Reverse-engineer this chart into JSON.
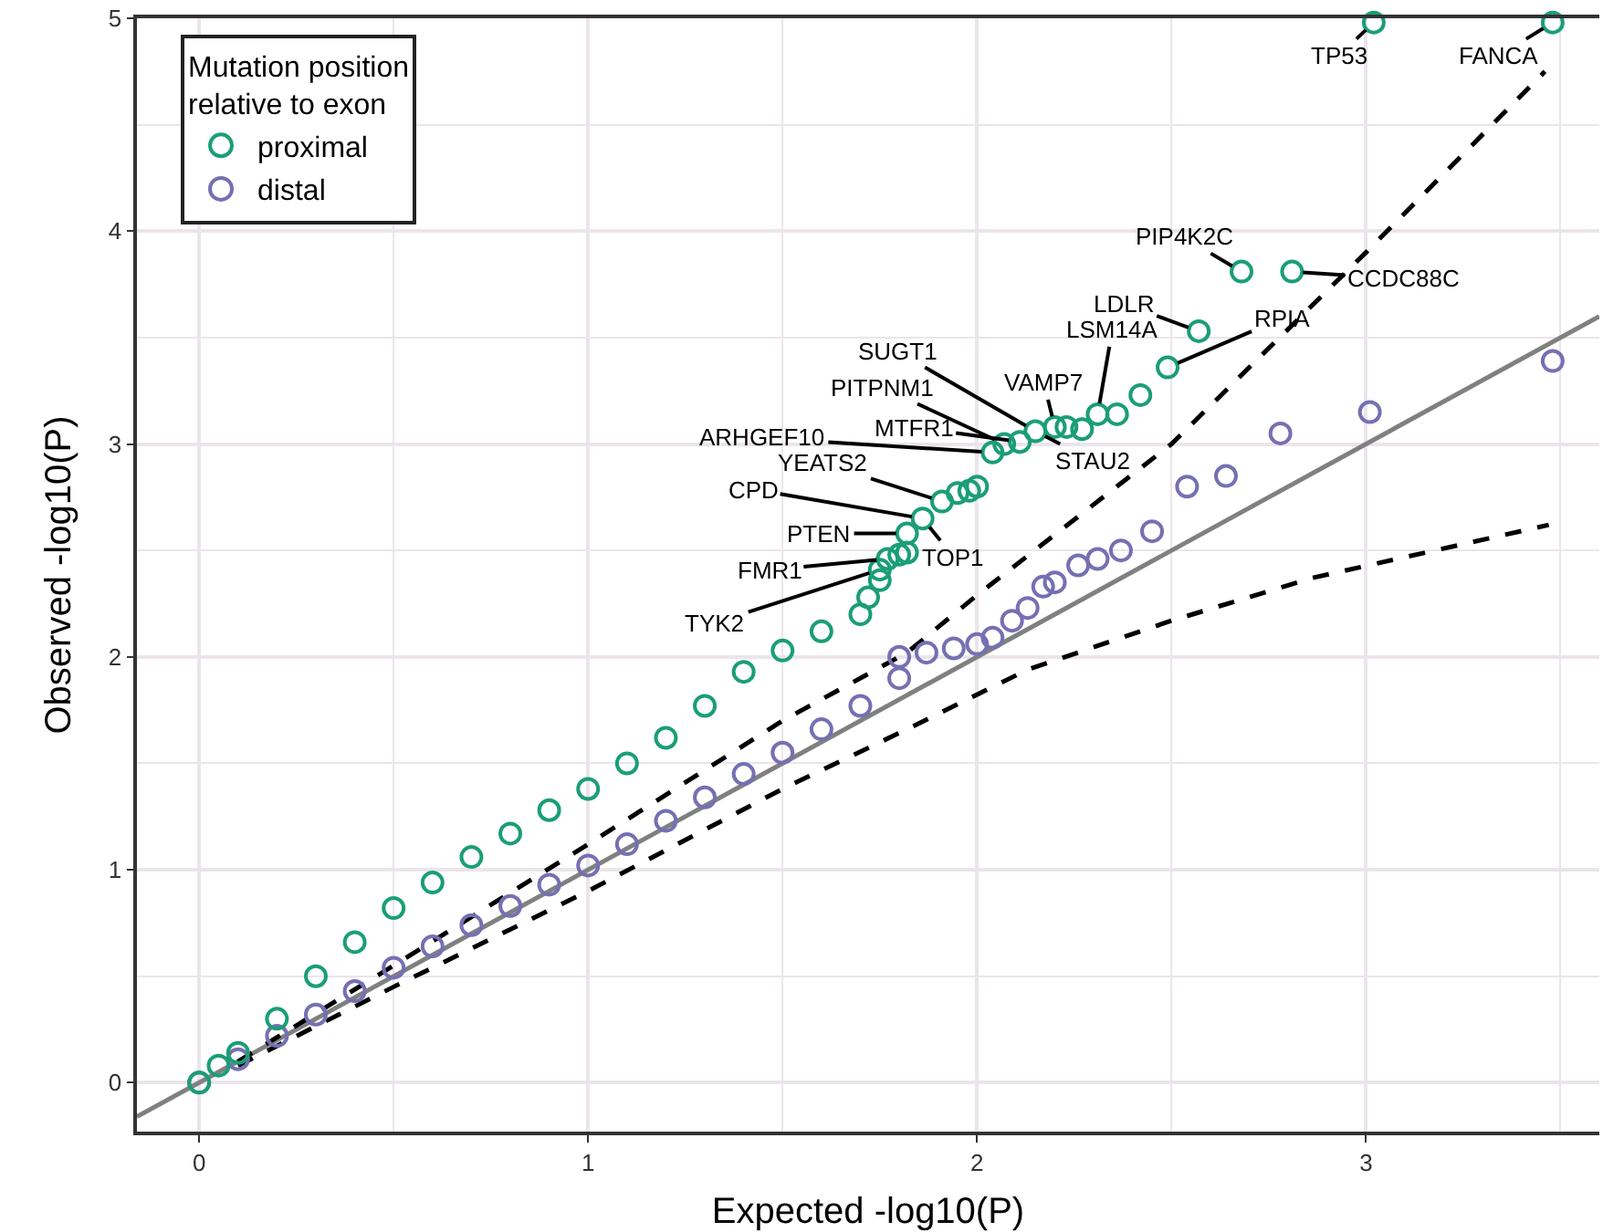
{
  "chart_data": {
    "type": "scatter",
    "xlabel": "Expected -log10(P)",
    "ylabel": "Observed -log10(P)",
    "legend_title": "Mutation position\nrelative to exon",
    "xlim": [
      -0.16,
      3.6
    ],
    "ylim": [
      -0.23,
      5.0
    ],
    "xticks": [
      0,
      1,
      2,
      3
    ],
    "yticks": [
      0,
      1,
      2,
      3,
      4,
      5
    ],
    "grid": true,
    "legend": "top left",
    "series": [
      {
        "type": "line",
        "color": "#808080",
        "line_style": "solid",
        "marker": "none",
        "x": [
          -0.16,
          3.6
        ],
        "values": [
          -0.16,
          3.6
        ]
      },
      {
        "type": "line",
        "color": "#000000",
        "line_style": "dashed",
        "marker": "none",
        "x": [
          0.1,
          0.5,
          1.0,
          1.5,
          1.82,
          2.0,
          2.5,
          3.0,
          3.46
        ],
        "values": [
          0.1,
          0.55,
          1.12,
          1.7,
          2.02,
          2.29,
          3.0,
          3.9,
          4.75
        ]
      },
      {
        "type": "line",
        "color": "#000000",
        "line_style": "dashed",
        "marker": "none",
        "x": [
          0.1,
          0.5,
          1.0,
          1.5,
          1.82,
          2.13,
          2.5,
          2.86,
          3.47
        ],
        "values": [
          0.08,
          0.45,
          0.9,
          1.38,
          1.66,
          1.94,
          2.17,
          2.37,
          2.62
        ]
      },
      {
        "name": "distal",
        "color": "#7570b3",
        "marker": "circle",
        "x": [
          0,
          0.1,
          0.2,
          0.3,
          0.4,
          0.5,
          0.6,
          0.7,
          0.8,
          0.9,
          1.0,
          1.1,
          1.2,
          1.3,
          1.4,
          1.5,
          1.6,
          1.7,
          1.8,
          1.8,
          1.87,
          1.94,
          2.0,
          2.04,
          2.09,
          2.13,
          2.17,
          2.2,
          2.26,
          2.31,
          2.37,
          2.45,
          2.54,
          2.64,
          2.78,
          3.01,
          3.48
        ],
        "values": [
          0,
          0.11,
          0.22,
          0.32,
          0.43,
          0.54,
          0.64,
          0.74,
          0.83,
          0.93,
          1.02,
          1.12,
          1.23,
          1.34,
          1.45,
          1.55,
          1.66,
          1.77,
          1.9,
          2.0,
          2.02,
          2.04,
          2.06,
          2.09,
          2.17,
          2.23,
          2.33,
          2.35,
          2.43,
          2.46,
          2.5,
          2.59,
          2.8,
          2.85,
          3.05,
          3.15,
          3.39
        ]
      },
      {
        "name": "proximal",
        "color": "#1b9e77",
        "marker": "circle",
        "x": [
          0,
          0.05,
          0.1,
          0.2,
          0.3,
          0.4,
          0.5,
          0.6,
          0.7,
          0.8,
          0.9,
          1.0,
          1.1,
          1.2,
          1.3,
          1.4,
          1.5,
          1.6,
          1.7,
          1.72,
          1.75,
          1.75,
          1.77,
          1.8,
          1.82,
          1.82,
          1.86,
          1.91,
          1.95,
          1.98,
          2.0,
          2.04,
          2.07,
          2.11,
          2.15,
          2.2,
          2.23,
          2.27,
          2.31,
          2.36,
          2.42,
          2.49,
          2.57,
          2.68,
          2.81,
          3.02,
          3.48
        ],
        "values": [
          0,
          0.08,
          0.14,
          0.3,
          0.5,
          0.66,
          0.82,
          0.94,
          1.06,
          1.17,
          1.28,
          1.38,
          1.5,
          1.62,
          1.77,
          1.93,
          2.03,
          2.12,
          2.2,
          2.28,
          2.36,
          2.41,
          2.46,
          2.48,
          2.49,
          2.58,
          2.65,
          2.73,
          2.77,
          2.78,
          2.8,
          2.96,
          3.0,
          3.01,
          3.06,
          3.08,
          3.08,
          3.07,
          3.14,
          3.14,
          3.23,
          3.36,
          3.53,
          3.81,
          3.81,
          4.98,
          4.98
        ]
      }
    ],
    "annotations": [
      {
        "text": "TP53",
        "x": 3.02,
        "y": 4.98
      },
      {
        "text": "FANCA",
        "x": 3.48,
        "y": 4.98
      },
      {
        "text": "PIP4K2C",
        "x": 2.68,
        "y": 3.81
      },
      {
        "text": "CCDC88C",
        "x": 2.81,
        "y": 3.81
      },
      {
        "text": "LDLR",
        "x": 2.57,
        "y": 3.53
      },
      {
        "text": "RPIA",
        "x": 2.49,
        "y": 3.36
      },
      {
        "text": "LSM14A",
        "x": 2.31,
        "y": 3.14
      },
      {
        "text": "SUGT1",
        "x": 2.15,
        "y": 3.06
      },
      {
        "text": "VAMP7",
        "x": 2.2,
        "y": 3.08
      },
      {
        "text": "PITPNM1",
        "x": 2.07,
        "y": 3.0
      },
      {
        "text": "MTFR1",
        "x": 2.11,
        "y": 3.01
      },
      {
        "text": "STAU2",
        "x": 2.15,
        "y": 3.06
      },
      {
        "text": "ARHGEF10",
        "x": 2.04,
        "y": 2.96
      },
      {
        "text": "YEATS2",
        "x": 1.91,
        "y": 2.73
      },
      {
        "text": "CPD",
        "x": 1.86,
        "y": 2.65
      },
      {
        "text": "PTEN",
        "x": 1.82,
        "y": 2.58
      },
      {
        "text": "TOP1",
        "x": 1.86,
        "y": 2.65
      },
      {
        "text": "FMR1",
        "x": 1.77,
        "y": 2.46
      },
      {
        "text": "TYK2",
        "x": 1.75,
        "y": 2.41
      }
    ]
  }
}
